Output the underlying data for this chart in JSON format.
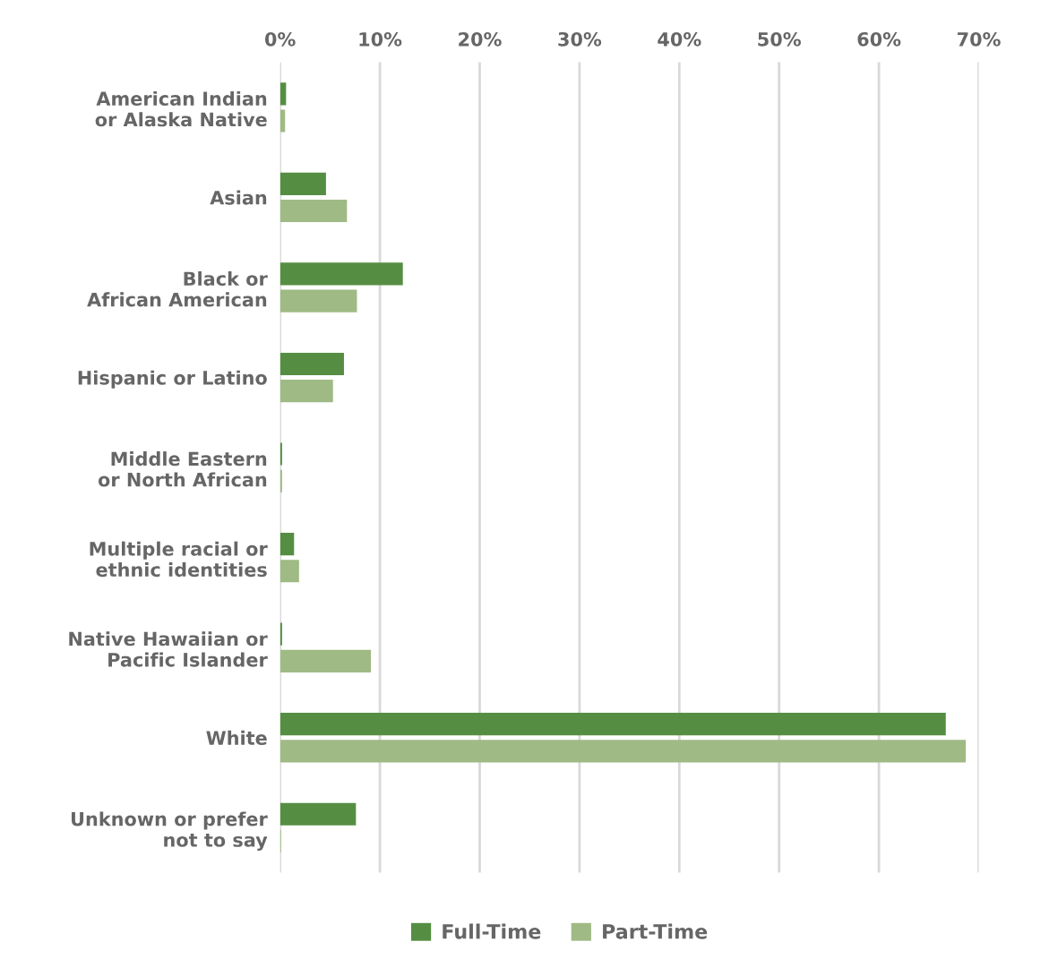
{
  "chart_data": {
    "type": "bar",
    "orientation": "horizontal",
    "categories": [
      "American Indian\nor Alaska Native",
      "Asian",
      "Black or\nAfrican American",
      "Hispanic or Latino",
      "Middle Eastern\nor North African",
      "Multiple racial or\nethnic identities",
      "Native Hawaiian or\nPacific Islander",
      "White",
      "Unknown or prefer\nnot to say"
    ],
    "series": [
      {
        "name": "Full-Time",
        "color": "#558e43",
        "values": [
          0.6,
          4.6,
          12.3,
          6.4,
          0.2,
          1.4,
          0.2,
          66.7,
          7.6
        ]
      },
      {
        "name": "Part-Time",
        "color": "#9fba84",
        "values": [
          0.5,
          6.7,
          7.7,
          5.3,
          0.2,
          1.9,
          9.1,
          68.7,
          0.1
        ]
      }
    ],
    "xlim": [
      0,
      70
    ],
    "xticks": [
      {
        "value": 0,
        "label": "0%"
      },
      {
        "value": 10,
        "label": "10%"
      },
      {
        "value": 20,
        "label": "20%"
      },
      {
        "value": 30,
        "label": "30%"
      },
      {
        "value": 40,
        "label": "40%"
      },
      {
        "value": 50,
        "label": "50%"
      },
      {
        "value": 60,
        "label": "60%"
      },
      {
        "value": 70,
        "label": "70%"
      }
    ],
    "grid": "x",
    "legend": "bottom"
  }
}
